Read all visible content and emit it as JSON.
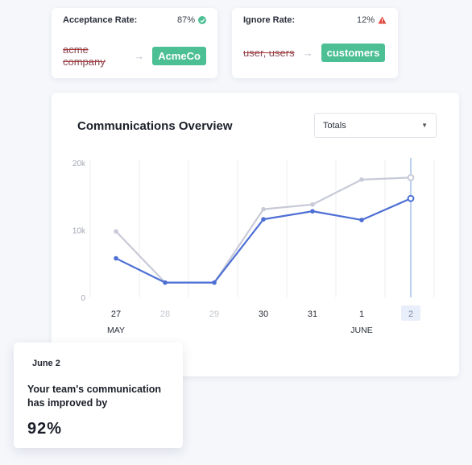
{
  "acceptance": {
    "label": "Acceptance Rate:",
    "value": "87%",
    "icon": "check-circle-icon",
    "old_term": "acme company",
    "new_term": "AcmeCo"
  },
  "ignore": {
    "label": "Ignore Rate:",
    "value": "12%",
    "icon": "warning-triangle-icon",
    "old_term": "user, users",
    "new_term": "customers"
  },
  "overview": {
    "title": "Communications Overview",
    "select_value": "Totals"
  },
  "colors": {
    "accent_green": "#4cbf95",
    "series_primary": "#4d6fd4",
    "series_secondary": "#c8cad8",
    "warning": "#e0463c"
  },
  "chart_data": {
    "type": "line",
    "ylim": [
      0,
      20000
    ],
    "y_ticks": [
      "0",
      "10k",
      "20k"
    ],
    "y_tick_values": [
      0,
      10000,
      20000
    ],
    "x_ticks": [
      {
        "day": "27",
        "month": "MAY",
        "muted": false
      },
      {
        "day": "28",
        "month": "",
        "muted": true
      },
      {
        "day": "29",
        "month": "",
        "muted": true
      },
      {
        "day": "30",
        "month": "",
        "muted": false
      },
      {
        "day": "31",
        "month": "",
        "muted": false
      },
      {
        "day": "1",
        "month": "JUNE",
        "muted": false
      },
      {
        "day": "2",
        "month": "",
        "muted": false,
        "selected": true
      }
    ],
    "series": [
      {
        "values": [
          9800,
          2200,
          2200,
          13100,
          13800,
          17500,
          17800
        ]
      },
      {
        "values": [
          5800,
          2200,
          2200,
          11600,
          12800,
          11500,
          14700
        ]
      }
    ],
    "selected_index": 6,
    "grid": true
  },
  "tooltip": {
    "date": "June 2",
    "message": "Your team's communication has improved by",
    "value": "92%"
  }
}
